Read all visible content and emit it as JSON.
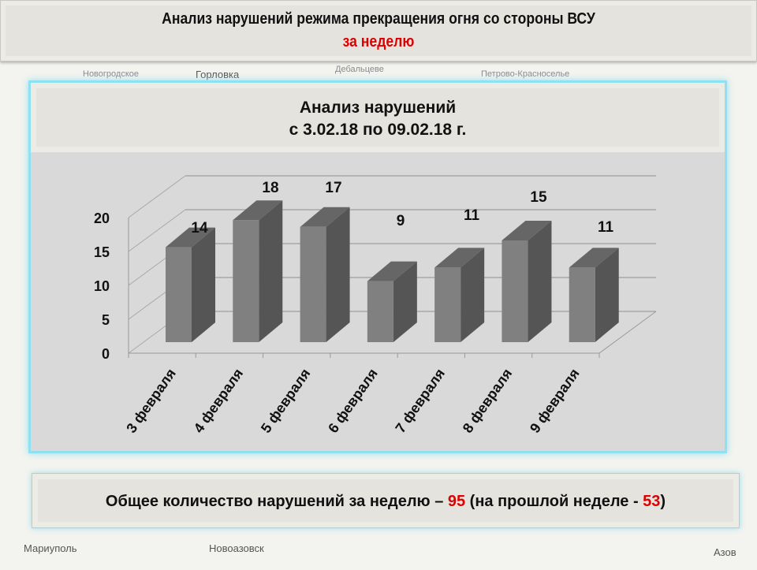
{
  "map_labels": [
    "Новогродское",
    "Горловка",
    "Дебальцеве",
    "Петрово-Красноселье",
    "Мариуполь",
    "Новоазовск",
    "Азов"
  ],
  "title": {
    "line1": "Анализ нарушений режима прекращения огня со стороны ВСУ",
    "line2": "за неделю"
  },
  "panel": {
    "line1": "Анализ нарушений",
    "line2": "с 3.02.18 по 09.02.18 г."
  },
  "summary": {
    "prefix": "Общее количество нарушений за неделю – ",
    "total": "95",
    "middle": " (на прошлой неделе - ",
    "prev": "53",
    "suffix": ")"
  },
  "chart_data": {
    "type": "bar",
    "style": "3d-column",
    "title": "Анализ нарушений с 3.02.18 по 09.02.18 г.",
    "categories": [
      "3 февраля",
      "4 февраля",
      "5 февраля",
      "6 февраля",
      "7 февраля",
      "8 февраля",
      "9 февраля"
    ],
    "values": [
      14,
      18,
      17,
      9,
      11,
      15,
      11
    ],
    "yticks": [
      0,
      5,
      10,
      15,
      20
    ],
    "ylim": [
      0,
      20
    ],
    "grid": true,
    "legend": "none",
    "colors": {
      "front": "#808080",
      "side": "#555555",
      "top": "#666666"
    }
  }
}
